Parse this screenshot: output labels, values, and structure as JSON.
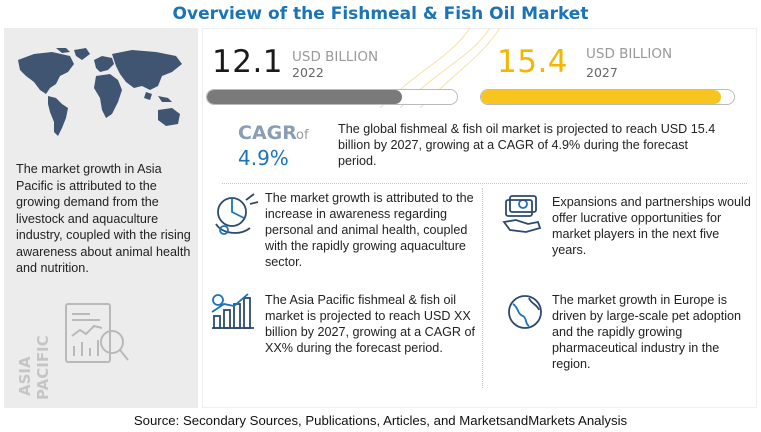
{
  "title": "Overview of the Fishmeal & Fish Oil Market",
  "colors": {
    "title_blue": "#1b73b8",
    "bar_gray": "#7a7a7a",
    "bar_yellow": "#f7c51e",
    "panel_gray": "#ececec"
  },
  "left_panel": {
    "text": "The market growth in Asia Pacific is attributed to the growing demand from the livestock and aquaculture industry, coupled with the rising awareness about animal health and nutrition.",
    "region_label_line1": "ASIA",
    "region_label_line2": "PACIFIC",
    "icons": [
      "world-map-icon",
      "analytics-report-icon"
    ]
  },
  "market_2022": {
    "value": "12.1",
    "unit": "USD BILLION",
    "year": "2022",
    "progress": 0.78
  },
  "market_2027": {
    "value": "15.4",
    "unit": "USD BILLION",
    "year": "2027",
    "progress": 0.95
  },
  "cagr": {
    "label": "CAGR",
    "of": "of",
    "value": "4.9%",
    "text": "The global fishmeal & fish oil market is projected to reach USD 15.4 billion by 2027, growing at a CAGR of 4.9% during the forecast period."
  },
  "findings": [
    {
      "icon": "health-awareness-icon",
      "text": "The market growth is attributed to the increase in awareness regarding personal and animal health, coupled with the rapidly growing aquaculture sector."
    },
    {
      "icon": "money-handshake-icon",
      "text": "Expansions and partnerships would offer lucrative opportunities for market players in the next five years."
    },
    {
      "icon": "growth-chart-icon",
      "text": "The Asia Pacific fishmeal & fish oil market is projected to reach USD XX billion by 2027, growing at a CAGR of XX% during the forecast period."
    },
    {
      "icon": "globe-europe-icon",
      "text": "The market growth in Europe is driven by large-scale pet adoption and the rapidly growing pharmaceutical industry in the region."
    }
  ],
  "source": "Source: Secondary Sources, Publications, Articles, and MarketsandMarkets Analysis"
}
